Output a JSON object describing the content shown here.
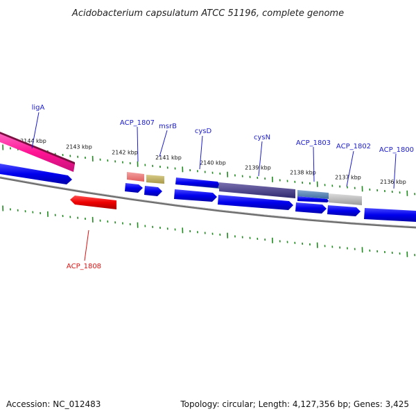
{
  "title": "Acidobacterium capsulatum ATCC 51196, complete genome",
  "footer": {
    "accession": "Accession: NC_012483",
    "summary": "Topology: circular; Length: 4,127,356 bp; Genes: 3,425"
  },
  "colors": {
    "forward_label": "#1a1acc",
    "reverse_label": "#dd1111",
    "tick": "#1e8a1e",
    "backbone": "#7a7a7a"
  },
  "ticks": [
    {
      "label": "2144 kbp"
    },
    {
      "label": "2143 kbp"
    },
    {
      "label": "2142 kbp"
    },
    {
      "label": "2141 kbp"
    },
    {
      "label": "2140 kbp"
    },
    {
      "label": "2139 kbp"
    },
    {
      "label": "2138 kbp"
    },
    {
      "label": "2137 kbp"
    },
    {
      "label": "2136 kbp"
    }
  ],
  "gene_labels": [
    {
      "name": "ligA",
      "strand": "forward"
    },
    {
      "name": "ACP_1807",
      "strand": "forward"
    },
    {
      "name": "msrB",
      "strand": "forward"
    },
    {
      "name": "cysD",
      "strand": "forward"
    },
    {
      "name": "cysN",
      "strand": "forward"
    },
    {
      "name": "ACP_1803",
      "strand": "forward"
    },
    {
      "name": "ACP_1802",
      "strand": "forward"
    },
    {
      "name": "ACP_1800",
      "strand": "forward"
    },
    {
      "name": "ACP_1808",
      "strand": "reverse"
    }
  ]
}
